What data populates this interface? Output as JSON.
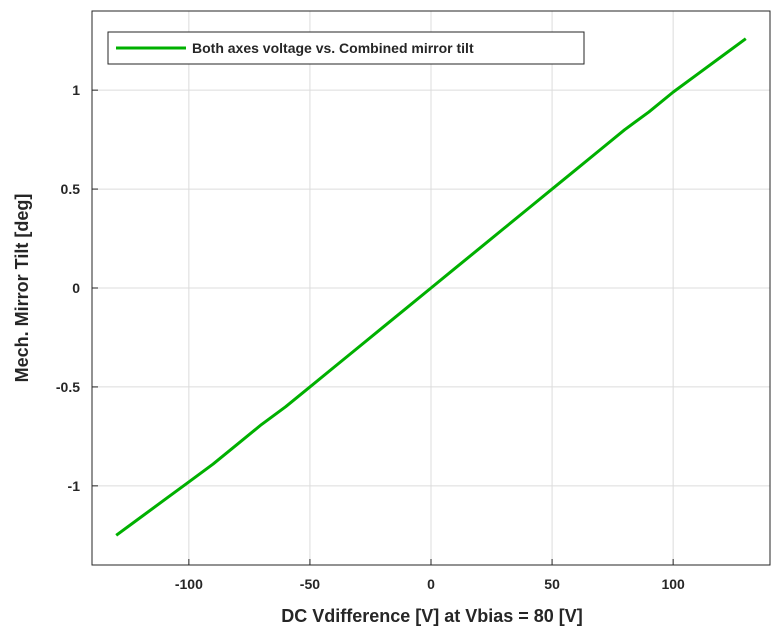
{
  "chart_data": {
    "type": "line",
    "xlabel": "DC Vdifference [V] at Vbias = 80 [V]",
    "ylabel": "Mech. Mirror Tilt [deg]",
    "x": [
      -130,
      -120,
      -110,
      -100,
      -90,
      -80,
      -70,
      -60,
      -50,
      -40,
      -30,
      -20,
      -10,
      0,
      10,
      20,
      30,
      40,
      50,
      60,
      70,
      80,
      90,
      100,
      110,
      120,
      130
    ],
    "series": [
      {
        "name": "Both axes voltage vs. Combined mirror tilt",
        "color": "#00b000",
        "values": [
          -1.25,
          -1.16,
          -1.07,
          -0.98,
          -0.89,
          -0.79,
          -0.69,
          -0.6,
          -0.5,
          -0.4,
          -0.3,
          -0.2,
          -0.1,
          0,
          0.1,
          0.2,
          0.3,
          0.4,
          0.5,
          0.6,
          0.7,
          0.8,
          0.89,
          0.99,
          1.08,
          1.17,
          1.26
        ]
      }
    ],
    "xlim": [
      -140,
      140
    ],
    "ylim": [
      -1.4,
      1.4
    ],
    "xticks": [
      -100,
      -50,
      0,
      50,
      100
    ],
    "yticks": [
      -1,
      -0.5,
      0,
      0.5,
      1
    ],
    "grid": true,
    "legend": "top-left"
  }
}
